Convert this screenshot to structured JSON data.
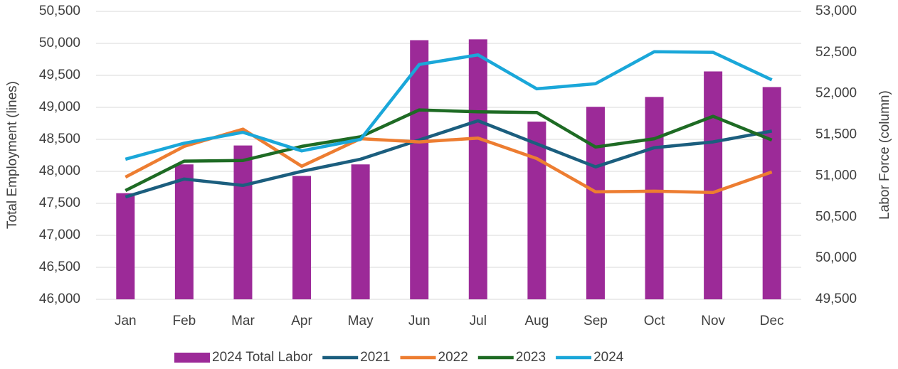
{
  "chart_data": {
    "type": "bar-line",
    "y_label": "Total Employment (lines)",
    "y2_label": "Labor Force (column)",
    "categories": [
      "Jan",
      "Feb",
      "Mar",
      "Apr",
      "May",
      "Jun",
      "Jul",
      "Aug",
      "Sep",
      "Oct",
      "Nov",
      "Dec"
    ],
    "ylim": [
      46000,
      50500
    ],
    "yticks": [
      {
        "value": 46000,
        "label": "46,000"
      },
      {
        "value": 46500,
        "label": "46,500"
      },
      {
        "value": 47000,
        "label": "47,000"
      },
      {
        "value": 47500,
        "label": "47,500"
      },
      {
        "value": 48000,
        "label": "48,000"
      },
      {
        "value": 48500,
        "label": "48,500"
      },
      {
        "value": 49000,
        "label": "49,000"
      },
      {
        "value": 49500,
        "label": "49,500"
      },
      {
        "value": 50000,
        "label": "50,000"
      },
      {
        "value": 50500,
        "label": "50,500"
      }
    ],
    "y2lim": [
      49500,
      53000
    ],
    "y2ticks": [
      {
        "value": 49500,
        "label": "49,500"
      },
      {
        "value": 50000,
        "label": "50,000"
      },
      {
        "value": 50500,
        "label": "50,500"
      },
      {
        "value": 51000,
        "label": "51,000"
      },
      {
        "value": 51500,
        "label": "51,500"
      },
      {
        "value": 52000,
        "label": "52,000"
      },
      {
        "value": 52500,
        "label": "52,500"
      },
      {
        "value": 53000,
        "label": "53,000"
      }
    ],
    "grid": true,
    "legend": "bottom",
    "series": [
      {
        "name": "2024 Total Labor",
        "type": "bar",
        "axis": "y2",
        "color": "#9c2a98",
        "values": [
          50790,
          51140,
          51370,
          51000,
          51140,
          52650,
          52660,
          51660,
          51840,
          51960,
          52270,
          52080
        ]
      },
      {
        "name": "2021",
        "type": "line",
        "color": "#1b5e7e",
        "values": [
          47600,
          47880,
          47780,
          48000,
          48190,
          48490,
          48790,
          48430,
          48070,
          48370,
          48460,
          48630
        ]
      },
      {
        "name": "2022",
        "type": "line",
        "color": "#ed7d31",
        "values": [
          47910,
          48390,
          48660,
          48080,
          48510,
          48460,
          48520,
          48200,
          47680,
          47690,
          47670,
          47990
        ]
      },
      {
        "name": "2023",
        "type": "line",
        "color": "#1e6b24",
        "values": [
          47700,
          48160,
          48170,
          48390,
          48540,
          48960,
          48930,
          48920,
          48380,
          48510,
          48860,
          48490
        ]
      },
      {
        "name": "2024",
        "type": "line",
        "color": "#1aa7d9",
        "values": [
          48190,
          48440,
          48610,
          48320,
          48500,
          49670,
          49820,
          49290,
          49370,
          49870,
          49860,
          49430
        ]
      }
    ]
  }
}
